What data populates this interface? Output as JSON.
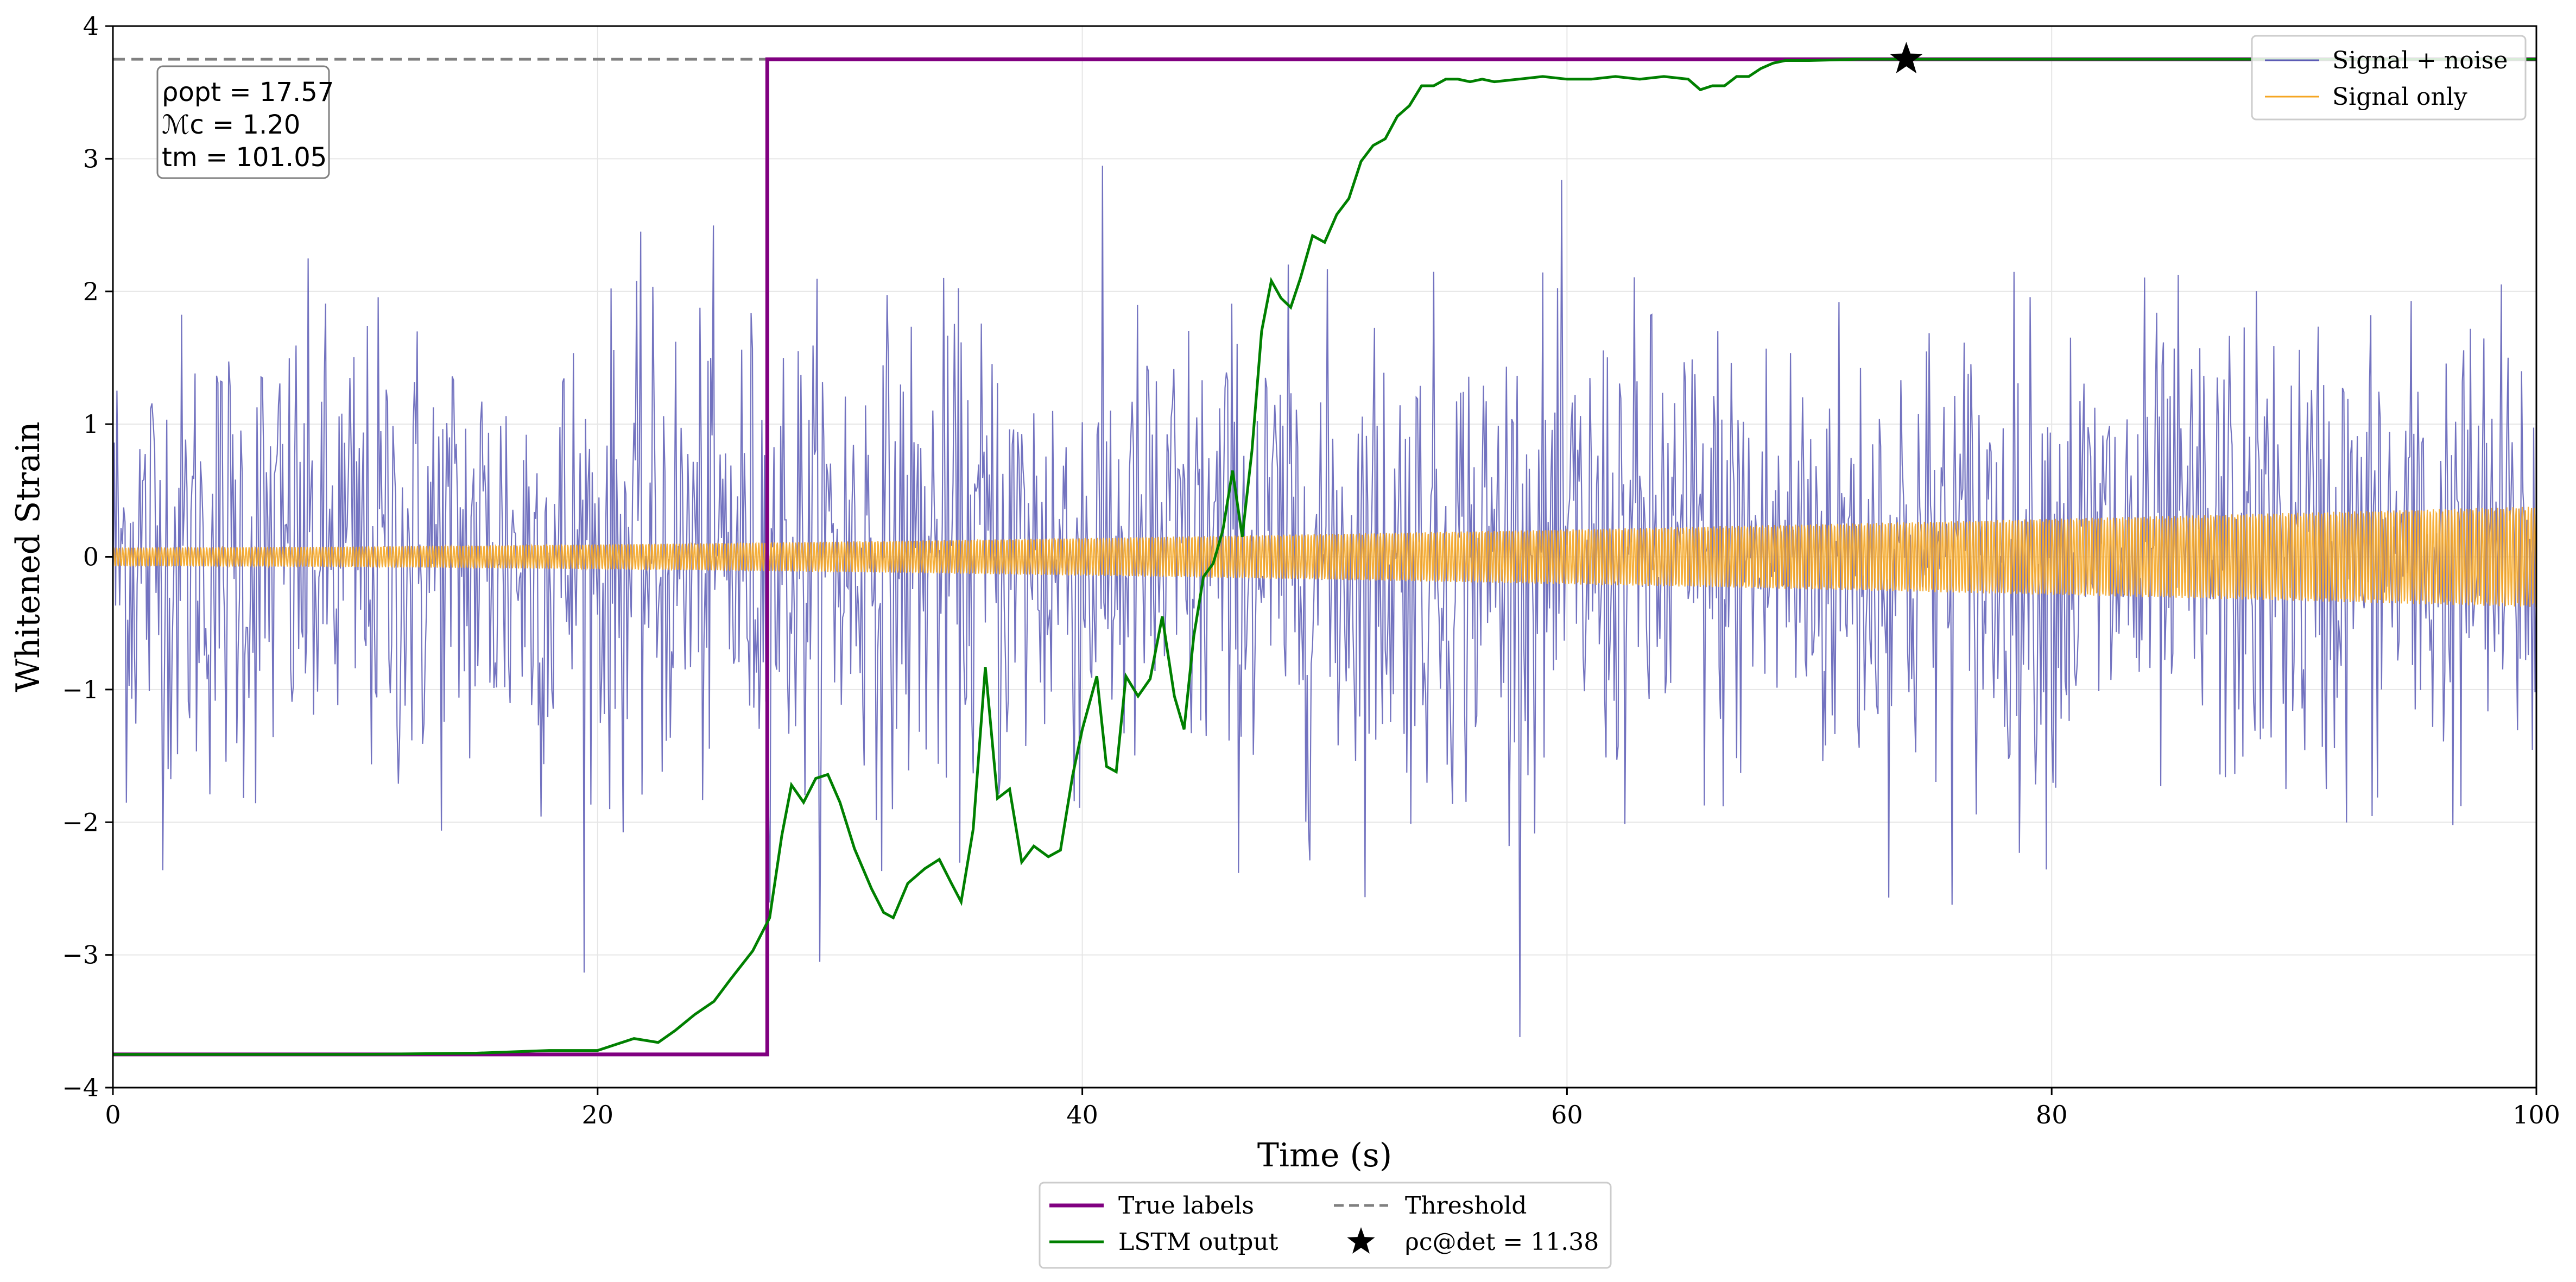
{
  "chart_data": {
    "type": "line",
    "title": "",
    "xlabel": "Time (s)",
    "ylabel": "Whitened Strain",
    "xlim": [
      0,
      100
    ],
    "ylim": [
      -4,
      4
    ],
    "xticks": [
      0,
      20,
      40,
      60,
      80,
      100
    ],
    "xtick_labels": [
      "0",
      "20",
      "40",
      "60",
      "80",
      "100"
    ],
    "yticks": [
      -4,
      -3,
      -2,
      -1,
      0,
      1,
      2,
      3,
      4
    ],
    "ytick_labels": [
      "−4",
      "−3",
      "−2",
      "−1",
      "0",
      "1",
      "2",
      "3",
      "4"
    ],
    "grid": true,
    "colors": {
      "signal_noise": "#5b5bb5",
      "signal_only": "#f5a623",
      "true_labels": "#800080",
      "lstm_output": "#008000",
      "threshold": "#808080",
      "star": "#000000"
    },
    "series": [
      {
        "name": "Signal + noise",
        "style": "thin noisy line",
        "description_values": {
          "samples": 1800,
          "sigma": 0.9,
          "x_start": 0,
          "x_end": 100
        }
      },
      {
        "name": "Signal only",
        "style": "chirp",
        "description_values": {
          "amplitude_start": 0.07,
          "amplitude_end": 0.38,
          "x_start": 0,
          "x_end": 100
        }
      },
      {
        "name": "True labels",
        "style": "step",
        "x": [
          0,
          27,
          27,
          100
        ],
        "y": [
          -3.75,
          -3.75,
          3.75,
          3.75
        ]
      },
      {
        "name": "LSTM output",
        "style": "line",
        "x": [
          0,
          10,
          15,
          18,
          20,
          21.5,
          22.5,
          23.2,
          24,
          24.8,
          25.5,
          26.4,
          27.1,
          27.6,
          28.0,
          28.5,
          29.0,
          29.5,
          30.0,
          30.6,
          31.3,
          31.8,
          32.2,
          32.8,
          33.5,
          34.1,
          34.6,
          35.0,
          35.5,
          36.0,
          36.5,
          37.0,
          37.5,
          38.0,
          38.6,
          39.1,
          39.6,
          40.0,
          40.6,
          41.0,
          41.4,
          41.8,
          42.3,
          42.8,
          43.3,
          43.8,
          44.2,
          44.6,
          45.0,
          45.4,
          45.8,
          46.2,
          46.6,
          47.0,
          47.4,
          47.8,
          48.2,
          48.6,
          49.0,
          49.5,
          50.0,
          50.5,
          51.0,
          51.5,
          52.0,
          52.5,
          53.0,
          53.5,
          54.0,
          54.5,
          55.0,
          55.5,
          56.0,
          56.5,
          57.0,
          58.0,
          59.0,
          60.0,
          61.0,
          62.0,
          63.0,
          64.0,
          65.0,
          65.5,
          66.0,
          66.5,
          67.0,
          67.5,
          68.0,
          68.5,
          69.0,
          70.0,
          72.0,
          74.0,
          100.0
        ],
        "y": [
          -3.75,
          -3.75,
          -3.74,
          -3.72,
          -3.72,
          -3.63,
          -3.66,
          -3.57,
          -3.45,
          -3.35,
          -3.18,
          -2.97,
          -2.72,
          -2.1,
          -1.72,
          -1.85,
          -1.67,
          -1.64,
          -1.85,
          -2.2,
          -2.5,
          -2.68,
          -2.72,
          -2.46,
          -2.35,
          -2.28,
          -2.46,
          -2.6,
          -2.05,
          -0.83,
          -1.82,
          -1.75,
          -2.3,
          -2.18,
          -2.26,
          -2.21,
          -1.65,
          -1.3,
          -0.9,
          -1.58,
          -1.62,
          -0.9,
          -1.05,
          -0.92,
          -0.45,
          -1.05,
          -1.3,
          -0.6,
          -0.15,
          -0.05,
          0.2,
          0.65,
          0.15,
          0.8,
          1.7,
          2.08,
          1.95,
          1.88,
          2.1,
          2.42,
          2.37,
          2.58,
          2.7,
          2.98,
          3.1,
          3.15,
          3.32,
          3.4,
          3.55,
          3.55,
          3.6,
          3.6,
          3.58,
          3.6,
          3.58,
          3.6,
          3.62,
          3.6,
          3.6,
          3.62,
          3.6,
          3.62,
          3.6,
          3.52,
          3.55,
          3.55,
          3.62,
          3.62,
          3.68,
          3.72,
          3.74,
          3.74,
          3.75,
          3.75,
          3.75
        ]
      },
      {
        "name": "Threshold",
        "style": "dashed",
        "y": 3.75
      }
    ],
    "detection_point": {
      "x": 74,
      "y": 3.75,
      "label": "ρc@det = 11.38"
    },
    "info_box": {
      "lines": [
        "ρopt = 17.57",
        "ℳc = 1.20",
        "tm = 101.05"
      ]
    },
    "legend_upper": {
      "position": "top-right",
      "items": [
        "Signal + noise",
        "Signal only"
      ]
    },
    "legend_lower": {
      "position": "bottom-center",
      "items": [
        "True labels",
        "LSTM output",
        "Threshold",
        "ρc@det = 11.38"
      ]
    }
  }
}
